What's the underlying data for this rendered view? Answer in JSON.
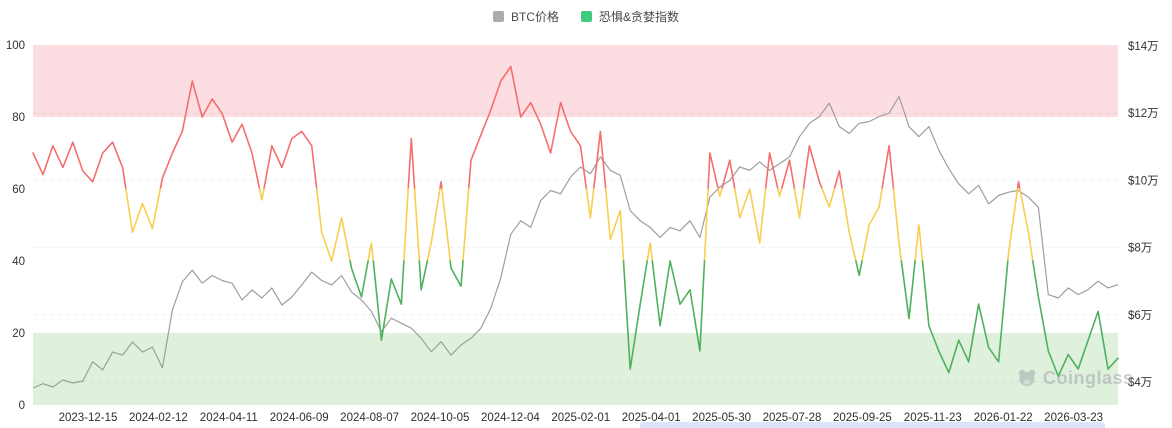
{
  "legend": {
    "btc_label": "BTC价格",
    "fg_label": "恐惧&贪婪指数",
    "btc_swatch_color": "#ababab",
    "fg_swatch_color": "#3fcb80"
  },
  "watermark": "Coinglass",
  "chart_data": {
    "type": "line",
    "title": "",
    "x_labels": [
      "2023-12-15",
      "2024-02-12",
      "2024-04-11",
      "2024-06-09",
      "2024-08-07",
      "2024-10-05",
      "2024-12-04",
      "2025-02-01",
      "2025-04-01",
      "2025-05-30",
      "2025-07-28",
      "2025-09-25",
      "2025-11-23",
      "2026-01-22",
      "2026-03-23"
    ],
    "left_axis": {
      "ticks": [
        0,
        20,
        40,
        60,
        80,
        100
      ],
      "min": 0,
      "max": 100
    },
    "right_axis": {
      "tick_labels": [
        "$4万",
        "$6万",
        "$8万",
        "$10万",
        "$12万",
        "$14万"
      ],
      "tick_values": [
        4,
        6,
        8,
        10,
        12,
        14
      ],
      "unit": "万美元"
    },
    "bands": [
      {
        "name": "greed-zone",
        "from": 80,
        "to": 100,
        "color": "#fcdee2"
      },
      {
        "name": "fear-zone",
        "from": 0,
        "to": 20,
        "color": "#dff0dd"
      }
    ],
    "grid": {
      "dashed_levels_right_axis": [
        12,
        10,
        8,
        6,
        4
      ],
      "color": "rgba(0,0,0,0.07)"
    },
    "series": [
      {
        "name": "BTC价格",
        "axis": "right",
        "color": "#9e9e9e",
        "unit": "万美元",
        "values": [
          3.82,
          3.95,
          3.85,
          4.06,
          3.97,
          4.03,
          4.6,
          4.36,
          4.89,
          4.8,
          5.19,
          4.89,
          5.04,
          4.42,
          6.14,
          6.98,
          7.33,
          6.94,
          7.17,
          7.02,
          6.94,
          6.44,
          6.74,
          6.5,
          6.8,
          6.29,
          6.53,
          6.89,
          7.27,
          7.02,
          6.89,
          7.17,
          6.68,
          6.44,
          6.1,
          5.5,
          5.9,
          5.75,
          5.6,
          5.3,
          4.9,
          5.2,
          4.8,
          5.1,
          5.3,
          5.6,
          6.2,
          7.1,
          8.4,
          8.8,
          8.6,
          9.4,
          9.7,
          9.6,
          10.1,
          10.4,
          10.2,
          10.7,
          10.3,
          10.15,
          9.1,
          8.8,
          8.6,
          8.3,
          8.6,
          8.5,
          8.8,
          8.3,
          9.5,
          9.8,
          10.0,
          10.4,
          10.3,
          10.55,
          10.3,
          10.5,
          10.7,
          11.3,
          11.7,
          11.9,
          12.3,
          11.6,
          11.4,
          11.7,
          11.75,
          11.9,
          12.0,
          12.5,
          11.6,
          11.3,
          11.6,
          10.9,
          10.35,
          9.9,
          9.6,
          9.85,
          9.3,
          9.55,
          9.65,
          9.7,
          9.5,
          9.2,
          6.6,
          6.5,
          6.8,
          6.6,
          6.75,
          7.0,
          6.8,
          6.9
        ]
      },
      {
        "name": "恐惧&贪婪指数",
        "axis": "left",
        "zone_colors": {
          "greed": "#f56e6e",
          "neutral": "#f7cf4f",
          "fear": "#4eb15b"
        },
        "zone_thresholds": {
          "greed_min": 60,
          "fear_max": 40
        },
        "values": [
          70,
          64,
          72,
          66,
          73,
          65,
          62,
          70,
          73,
          66,
          48,
          56,
          49,
          63,
          70,
          76,
          90,
          80,
          85,
          81,
          73,
          78,
          70,
          57,
          72,
          66,
          74,
          76,
          72,
          48,
          40,
          52,
          38,
          30,
          45,
          18,
          35,
          28,
          74,
          32,
          45,
          62,
          38,
          33,
          68,
          75,
          82,
          90,
          94,
          80,
          84,
          78,
          70,
          84,
          76,
          72,
          52,
          76,
          46,
          54,
          10,
          28,
          45,
          22,
          40,
          28,
          32,
          15,
          70,
          58,
          68,
          52,
          60,
          45,
          70,
          58,
          68,
          52,
          72,
          62,
          55,
          65,
          48,
          36,
          50,
          55,
          72,
          45,
          24,
          50,
          22,
          15,
          9,
          18,
          12,
          28,
          16,
          12,
          42,
          62,
          48,
          30,
          15,
          8,
          14,
          10,
          18,
          26,
          10,
          13
        ]
      }
    ]
  }
}
